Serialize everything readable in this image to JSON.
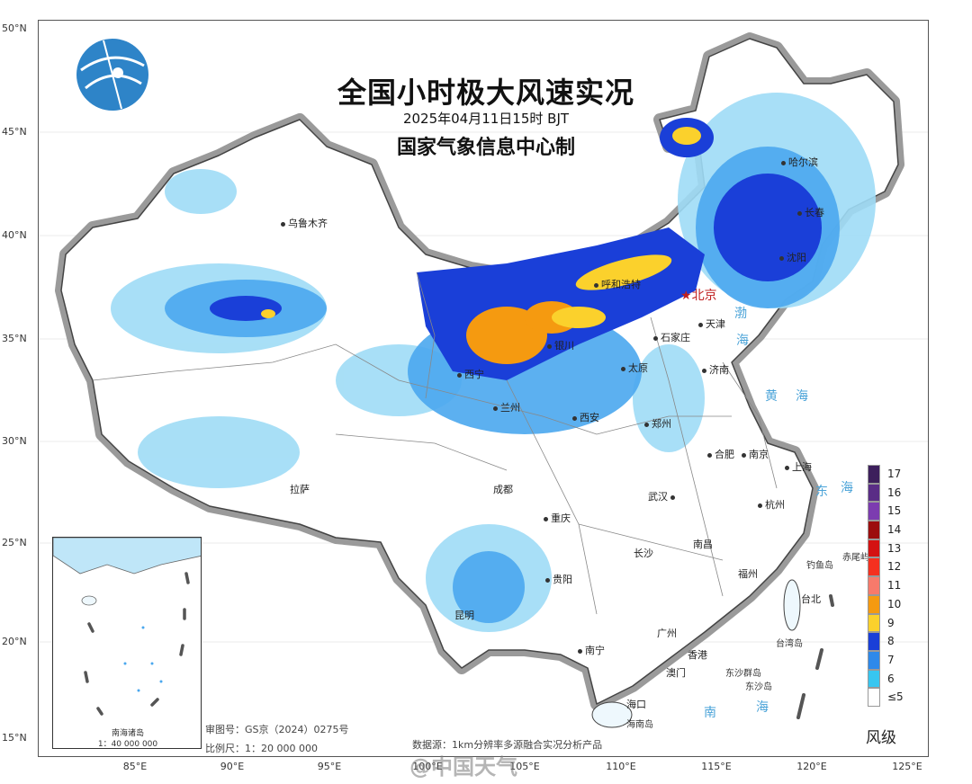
{
  "title": "全国小时极大风速实况",
  "subtitle": "2025年04月11日15时  BJT",
  "issuer": "国家气象信息中心制",
  "lat_labels": [
    "50°N",
    "45°N",
    "40°N",
    "35°N",
    "30°N",
    "25°N",
    "20°N",
    "15°N"
  ],
  "lon_labels": [
    "85°E",
    "90°E",
    "95°E",
    "100°E",
    "105°E",
    "110°E",
    "115°E",
    "120°E",
    "125°E"
  ],
  "cities": {
    "urumqi": "乌鲁木齐",
    "harbin": "哈尔滨",
    "changchun": "长春",
    "shenyang": "沈阳",
    "hohhot": "呼和浩特",
    "beijing": "北京",
    "tianjin": "天津",
    "shijiazhuang": "石家庄",
    "taiyuan": "太原",
    "jinan": "济南",
    "xining": "西宁",
    "lanzhou": "兰州",
    "yinchuan": "银川",
    "xian": "西安",
    "zhengzhou": "郑州",
    "hefei": "合肥",
    "nanjing": "南京",
    "shanghai": "上海",
    "hangzhou": "杭州",
    "wuhan": "武汉",
    "chengdu": "成都",
    "chongqing": "重庆",
    "lhasa": "拉萨",
    "changsha": "长沙",
    "nanchang": "南昌",
    "fuzhou": "福州",
    "taipei": "台北",
    "guiyang": "贵阳",
    "kunming": "昆明",
    "nanning": "南宁",
    "guangzhou": "广州",
    "hongkong": "香港",
    "macau": "澳门",
    "haikou": "海口",
    "hainan_island": "海南岛",
    "chiwei": "赤尾屿",
    "diaoyu": "钓鱼岛",
    "taiwan_island": "台湾岛",
    "dongsha_islands": "东沙群岛",
    "dongsha": "东沙岛"
  },
  "seas": {
    "bohai": "渤",
    "bohai2": "海",
    "yellow": "黄",
    "yellow2": "海",
    "east": "东",
    "east2": "海",
    "south": "南",
    "south2": "海"
  },
  "footer": {
    "map_review": "审图号：GS京（2024）0275号",
    "scale": "比例尺：1：20 000 000",
    "data_source": "数据源：1km分辨率多源融合实况分析产品"
  },
  "inset": {
    "title": "南海诸岛",
    "scale": "1：40 000 000"
  },
  "legend": {
    "title": "风级",
    "items": [
      {
        "label": "17",
        "color": "#3d1f5c"
      },
      {
        "label": "16",
        "color": "#5a2d86"
      },
      {
        "label": "15",
        "color": "#7c3cb0"
      },
      {
        "label": "14",
        "color": "#9c0e0e"
      },
      {
        "label": "13",
        "color": "#d41212"
      },
      {
        "label": "12",
        "color": "#f5301f"
      },
      {
        "label": "11",
        "color": "#f77a6b"
      },
      {
        "label": "10",
        "color": "#f59a10"
      },
      {
        "label": "9",
        "color": "#fbd12c"
      },
      {
        "label": "8",
        "color": "#1a3fd8"
      },
      {
        "label": "7",
        "color": "#2e89ea"
      },
      {
        "label": "6",
        "color": "#38c6f0"
      },
      {
        "label": "≤5",
        "color": "#ffffff"
      }
    ]
  },
  "watermark": "@中国天气"
}
